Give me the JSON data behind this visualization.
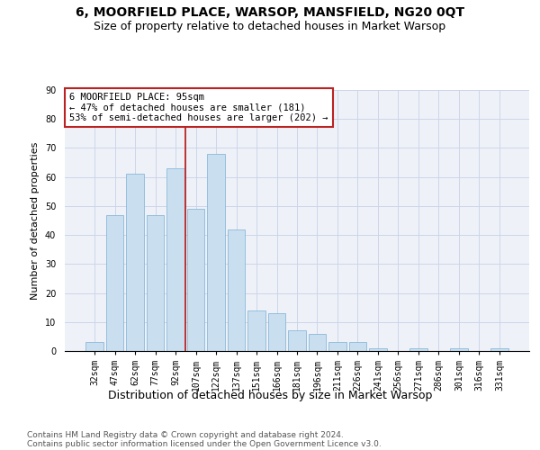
{
  "title": "6, MOORFIELD PLACE, WARSOP, MANSFIELD, NG20 0QT",
  "subtitle": "Size of property relative to detached houses in Market Warsop",
  "xlabel": "Distribution of detached houses by size in Market Warsop",
  "ylabel": "Number of detached properties",
  "categories": [
    "32sqm",
    "47sqm",
    "62sqm",
    "77sqm",
    "92sqm",
    "107sqm",
    "122sqm",
    "137sqm",
    "151sqm",
    "166sqm",
    "181sqm",
    "196sqm",
    "211sqm",
    "226sqm",
    "241sqm",
    "256sqm",
    "271sqm",
    "286sqm",
    "301sqm",
    "316sqm",
    "331sqm"
  ],
  "values": [
    3,
    47,
    61,
    47,
    63,
    49,
    68,
    42,
    14,
    13,
    7,
    6,
    3,
    3,
    1,
    0,
    1,
    0,
    1,
    0,
    1
  ],
  "bar_color": "#c9dff0",
  "bar_edge_color": "#8ab8d8",
  "vline_x": 4.5,
  "vline_color": "#bb2222",
  "annotation_text": "6 MOORFIELD PLACE: 95sqm\n← 47% of detached houses are smaller (181)\n53% of semi-detached houses are larger (202) →",
  "annotation_box_color": "white",
  "annotation_box_edge": "#bb2222",
  "ylim": [
    0,
    90
  ],
  "yticks": [
    0,
    10,
    20,
    30,
    40,
    50,
    60,
    70,
    80,
    90
  ],
  "grid_color": "#ccd5e8",
  "background_color": "#eef2f8",
  "footer1": "Contains HM Land Registry data © Crown copyright and database right 2024.",
  "footer2": "Contains public sector information licensed under the Open Government Licence v3.0.",
  "title_fontsize": 10,
  "subtitle_fontsize": 9,
  "xlabel_fontsize": 9,
  "ylabel_fontsize": 8,
  "tick_fontsize": 7,
  "annotation_fontsize": 7.5,
  "footer_fontsize": 6.5
}
